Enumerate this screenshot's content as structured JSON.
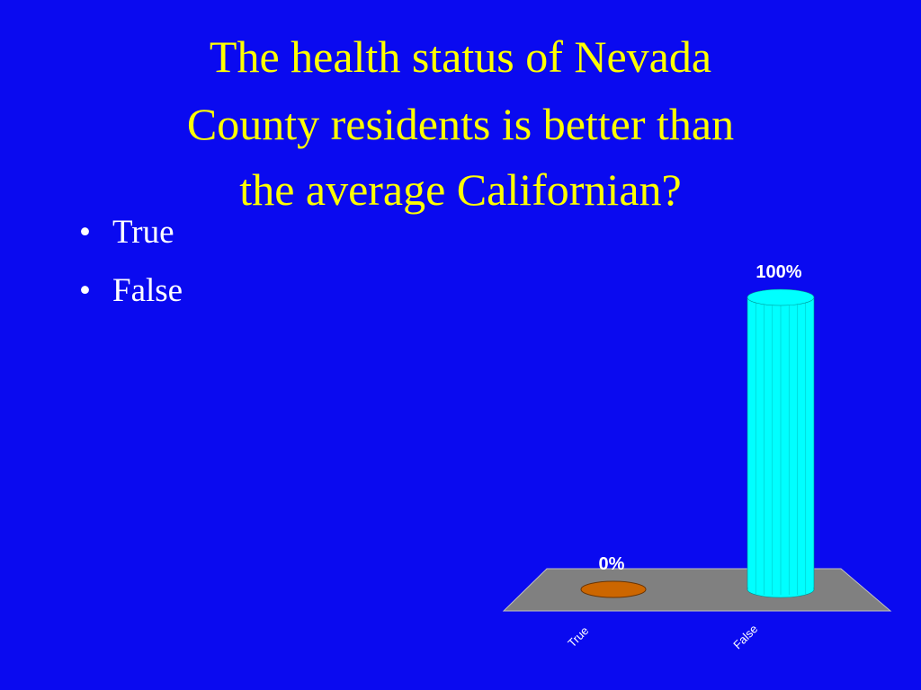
{
  "title": [
    "The health status of Nevada",
    "County residents is better than",
    "the average Californian?"
  ],
  "bullets": [
    "True",
    "False"
  ],
  "chart_data": {
    "type": "bar",
    "categories": [
      "True",
      "False"
    ],
    "values": [
      0,
      100
    ],
    "value_labels": [
      "0%",
      "100%"
    ],
    "colors": [
      "#cc6600",
      "#00ffff"
    ]
  }
}
